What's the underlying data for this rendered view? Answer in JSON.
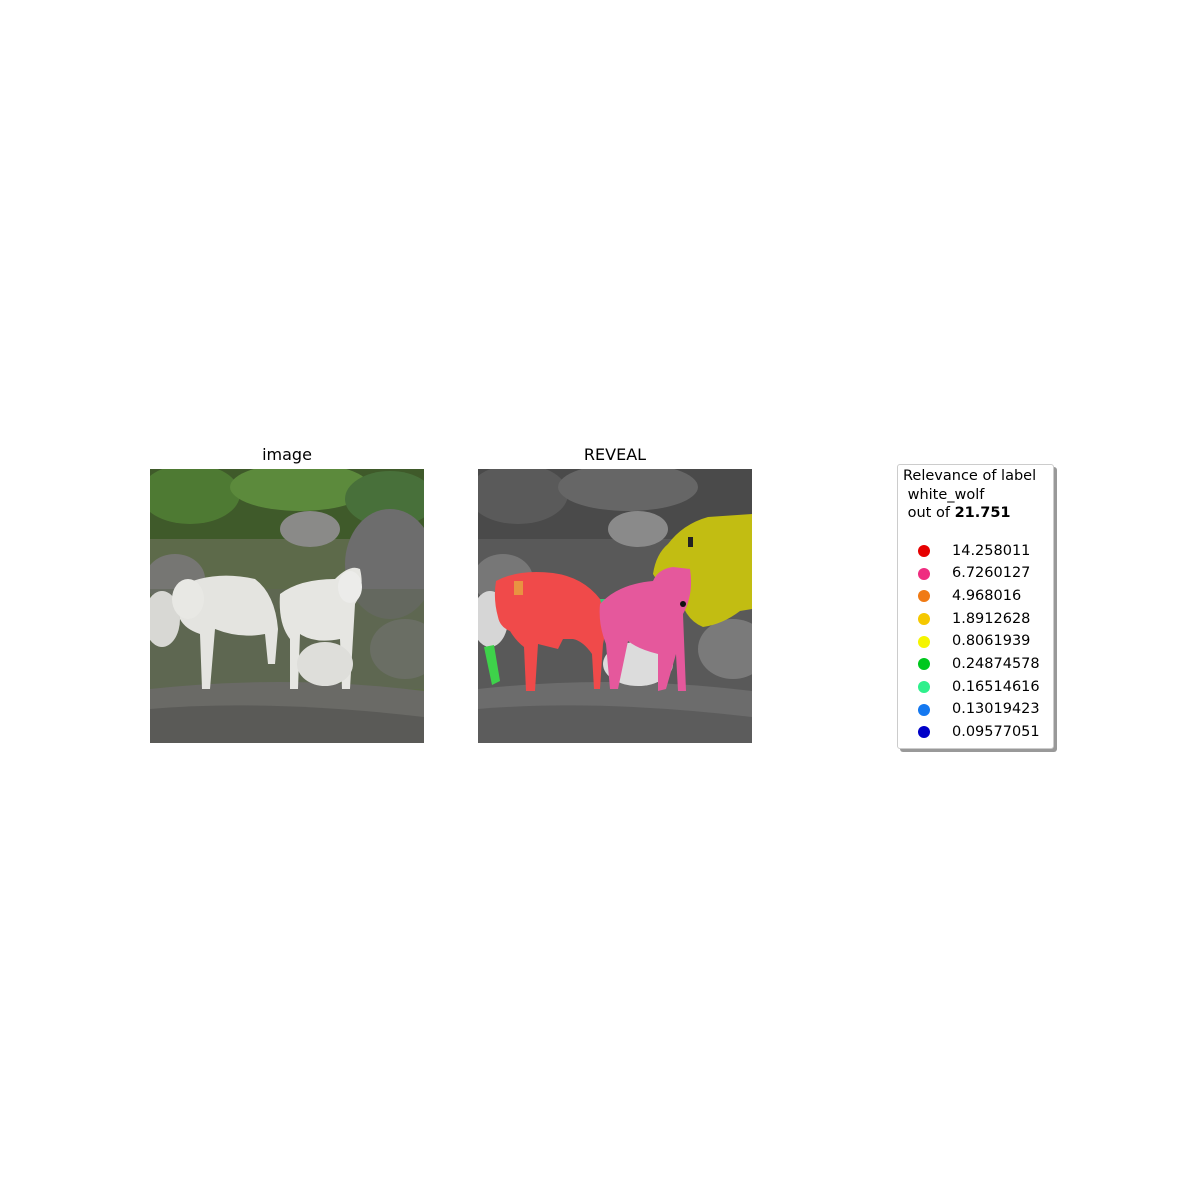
{
  "panels": {
    "image_title": "image",
    "reveal_title": "REVEAL"
  },
  "legend": {
    "line1": "Relevance of label",
    "line2": " white_wolf",
    "line3_prefix": " out of ",
    "total": "21.751",
    "items": [
      {
        "value": "14.258011",
        "color": "#e60000"
      },
      {
        "value": "6.7260127",
        "color": "#ef2d80"
      },
      {
        "value": "4.968016",
        "color": "#f07a14"
      },
      {
        "value": "1.8912628",
        "color": "#f5c800"
      },
      {
        "value": "0.8061939",
        "color": "#f5f500"
      },
      {
        "value": "0.24874578",
        "color": "#00c81e"
      },
      {
        "value": "0.16514616",
        "color": "#2ef08c"
      },
      {
        "value": "0.13019423",
        "color": "#1478f0"
      },
      {
        "value": "0.09577051",
        "color": "#0000c8"
      }
    ]
  },
  "overlay_colors": {
    "red": "#f04a4a",
    "pink": "#e5589c",
    "yellow": "#c8c30f",
    "green": "#3ed24a",
    "teal": "#34c87a"
  }
}
